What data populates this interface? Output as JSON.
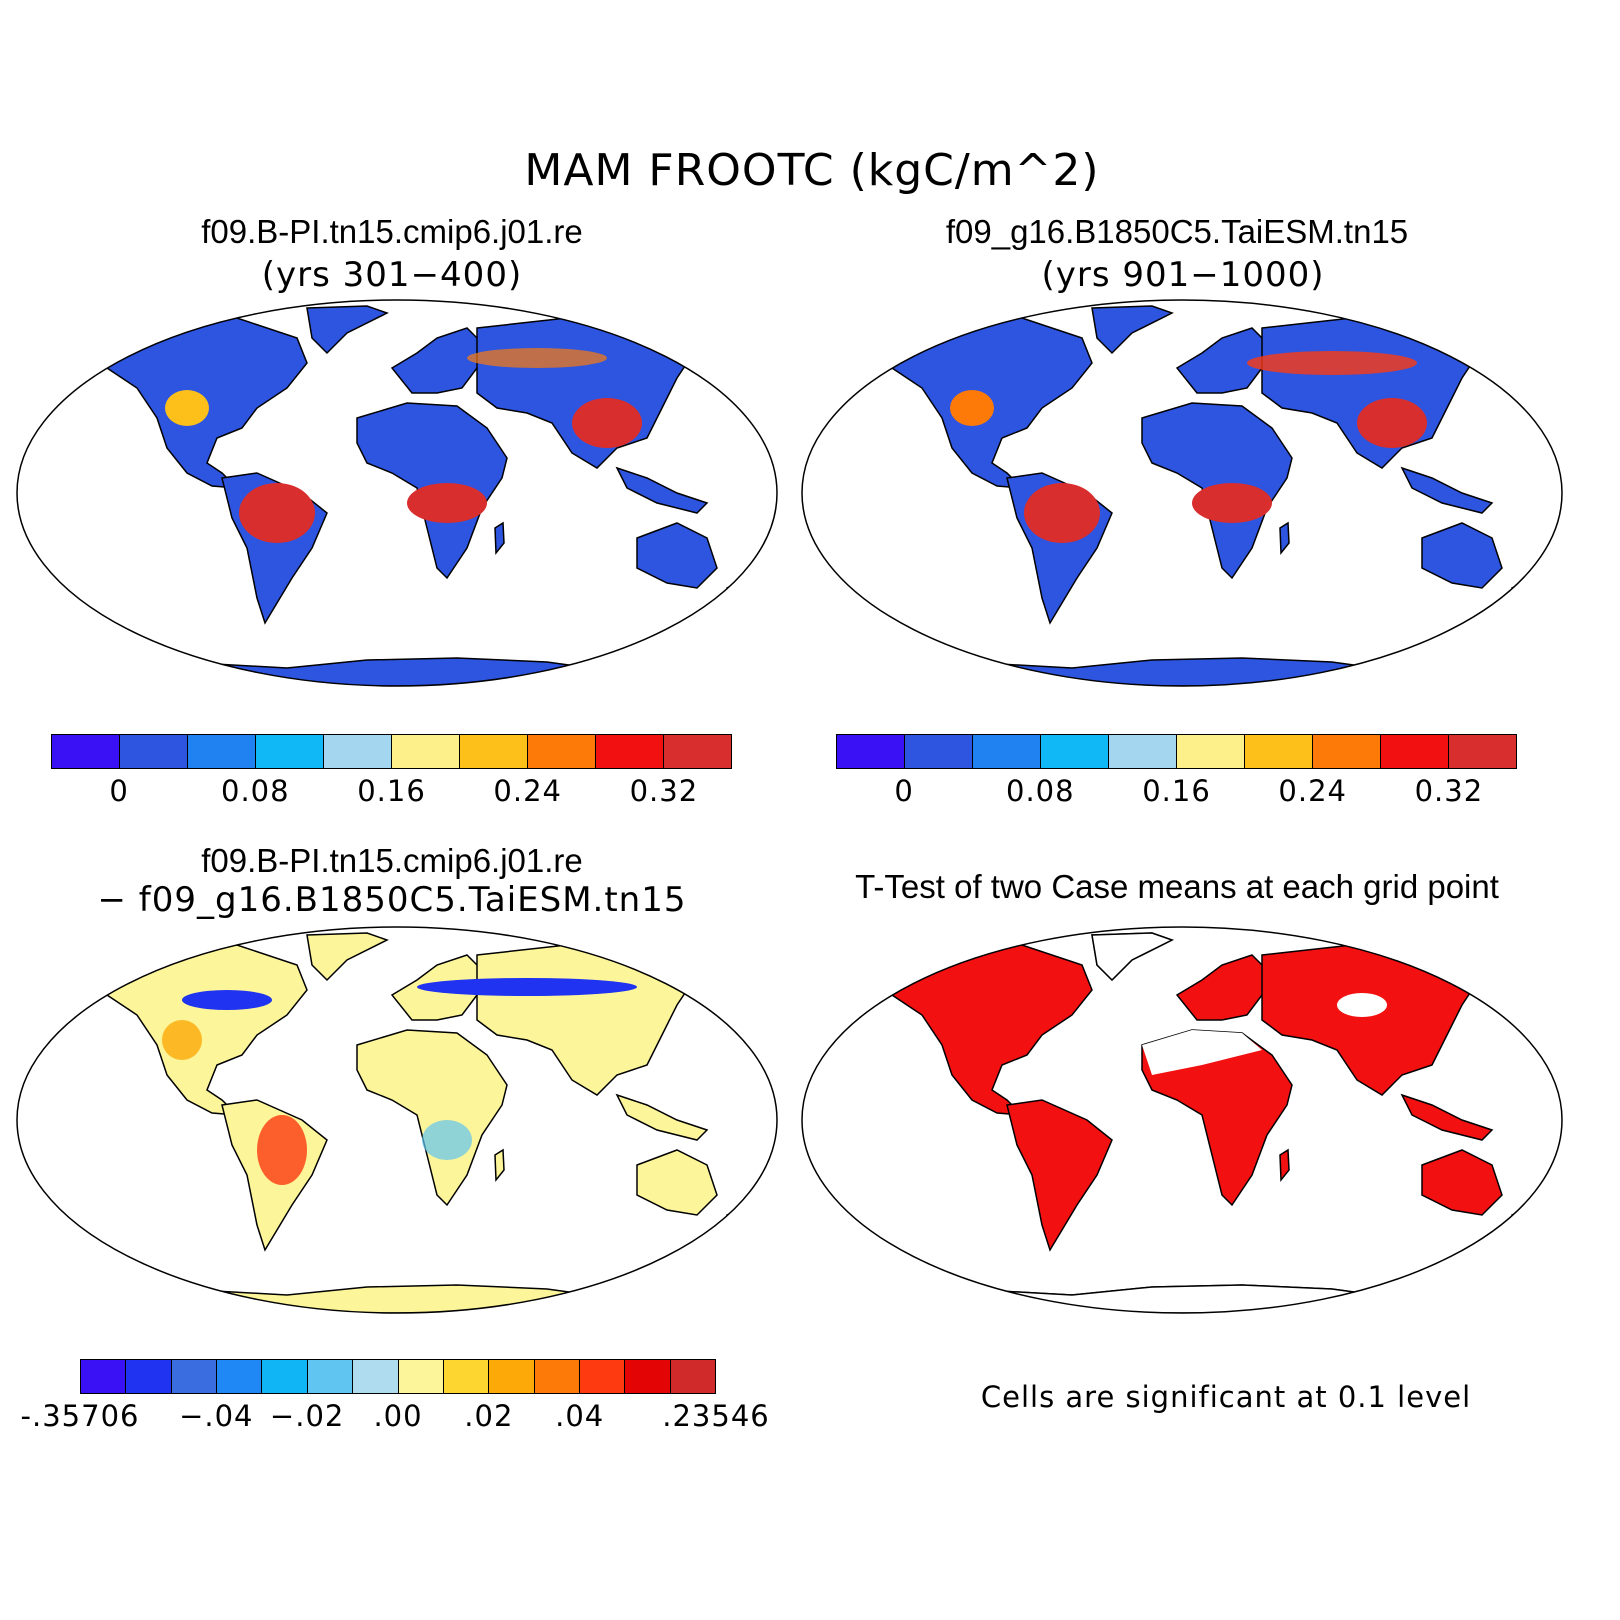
{
  "figure": {
    "title": "MAM FROOTC (kgC/m^2)"
  },
  "panels": {
    "case1": {
      "title": "f09.B-PI.tn15.cmip6.j01.re",
      "subtitle": "(yrs 301−400)"
    },
    "case2": {
      "title": "f09_g16.B1850C5.TaiESM.tn15",
      "subtitle": "(yrs 901−1000)"
    },
    "diff": {
      "title": "f09.B-PI.tn15.cmip6.j01.re",
      "subtitle": "− f09_g16.B1850C5.TaiESM.tn15"
    },
    "ttest": {
      "title": "T-Test of two Case means at each grid point",
      "note": "Cells are significant at 0.1 level"
    }
  },
  "colorbars": {
    "abs": {
      "colors": [
        "#3a10f5",
        "#2d55e0",
        "#2082f0",
        "#10b8f5",
        "#a5d6f0",
        "#fdf08a",
        "#fdc01a",
        "#fd7a08",
        "#f21010",
        "#d92e2e"
      ],
      "labels": [
        "0",
        "0.08",
        "0.16",
        "0.24",
        "0.32"
      ]
    },
    "diff": {
      "colors": [
        "#3a10f5",
        "#1f33f0",
        "#3a6ee0",
        "#2088f5",
        "#10b5f5",
        "#60c5f0",
        "#b0dcf0",
        "#fdf59a",
        "#fdd630",
        "#fdaa08",
        "#fd7a08",
        "#fd3a10",
        "#e30505",
        "#d12a2a"
      ],
      "labels": [
        "-.35706",
        "−.04",
        "−.02",
        ".00",
        ".02",
        ".04",
        ".23546"
      ]
    }
  },
  "map_colors": {
    "ocean": "#ffffff",
    "coast": "#000000",
    "significant": "#f21010"
  }
}
